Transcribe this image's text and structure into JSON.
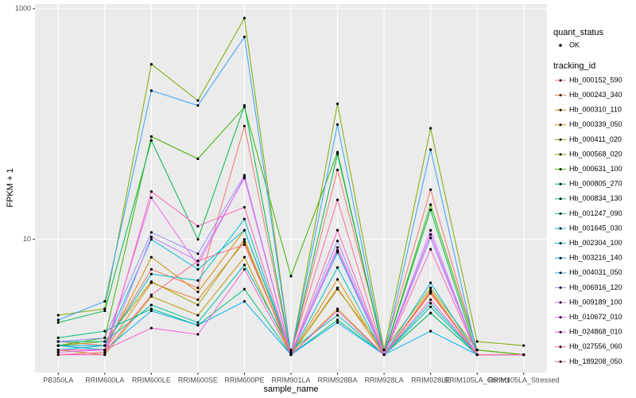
{
  "chart_data": {
    "type": "line",
    "x_label": "sample_name",
    "y_label": "FPKM + 1",
    "log_y": true,
    "grid": true,
    "ylim": [
      0.7,
      1100
    ],
    "yticks": [
      10,
      1000
    ],
    "shape_legend": {
      "title": "quant_status",
      "labels": [
        "OK"
      ]
    },
    "color_legend_title": "tracking_id",
    "categories": [
      "PB350LA",
      "RRIM600LA",
      "RRIM600LE",
      "RRIM600SE",
      "RRIM600PE",
      "RRIM901LA",
      "RRIM928BA",
      "RRIM928LA",
      "RRIM928LE",
      "RRIM105LA_Control",
      "RRIM105LA_Stressed"
    ],
    "series": [
      {
        "name": "Hb_000152_590",
        "color": "#F8766D",
        "values": [
          1.3,
          1.2,
          5.5,
          3.8,
          96,
          1,
          40,
          1.1,
          27,
          1.1,
          1
        ]
      },
      {
        "name": "Hb_000243_340",
        "color": "#EA8331",
        "values": [
          1.1,
          1.1,
          4.2,
          3.0,
          9.5,
          1,
          3.8,
          1,
          3.4,
          1,
          1
        ]
      },
      {
        "name": "Hb_000310_110",
        "color": "#D89000",
        "values": [
          1.2,
          1.1,
          7.0,
          3.5,
          12,
          1,
          4.5,
          1,
          3.6,
          1,
          1
        ]
      },
      {
        "name": "Hb_000339_050",
        "color": "#C09B00",
        "values": [
          1.1,
          1.0,
          3.2,
          2.2,
          7,
          1,
          2.5,
          1,
          2.3,
          1,
          1
        ]
      },
      {
        "name": "Hb_000411_020",
        "color": "#A3A500",
        "values": [
          1.2,
          1.3,
          4.3,
          2.7,
          10,
          1,
          3.7,
          1.1,
          3.8,
          1.1,
          1
        ]
      },
      {
        "name": "Hb_000568_020",
        "color": "#7CAE00",
        "values": [
          2.2,
          2.5,
          330,
          160,
          830,
          1,
          150,
          1.1,
          92,
          1.3,
          1.2
        ]
      },
      {
        "name": "Hb_000631_100",
        "color": "#39B600",
        "values": [
          1.2,
          1.4,
          78,
          50,
          140,
          4.8,
          57,
          1,
          20,
          1.1,
          1
        ]
      },
      {
        "name": "Hb_000805_270",
        "color": "#00BB4E",
        "values": [
          1.9,
          2.4,
          72,
          10,
          145,
          1,
          55,
          1,
          18,
          1,
          1
        ]
      },
      {
        "name": "Hb_000834_130",
        "color": "#00BF7D",
        "values": [
          1.4,
          1.6,
          2.5,
          1.8,
          3.7,
          1,
          2.0,
          1,
          2.3,
          1,
          1
        ]
      },
      {
        "name": "Hb_001247_090",
        "color": "#00C1A3",
        "values": [
          1.3,
          1.3,
          2.7,
          1.9,
          6.0,
          1.1,
          2.2,
          1,
          2.6,
          1,
          1
        ]
      },
      {
        "name": "Hb_001645_030",
        "color": "#00BFC4",
        "values": [
          1.1,
          1.2,
          5.0,
          4.4,
          15,
          1,
          5.7,
          1,
          2.8,
          1,
          1
        ]
      },
      {
        "name": "Hb_002304_100",
        "color": "#00BAE0",
        "values": [
          1.2,
          1.2,
          10,
          5.5,
          12,
          1.05,
          7.7,
          1,
          4.2,
          1,
          1
        ]
      },
      {
        "name": "Hb_003216_140",
        "color": "#00B0F6",
        "values": [
          1.2,
          1.1,
          2.4,
          1.8,
          2.9,
          1,
          1.9,
          1,
          1.6,
          1,
          1
        ]
      },
      {
        "name": "Hb_004031_050",
        "color": "#35A2FF",
        "values": [
          2.0,
          2.9,
          195,
          145,
          570,
          1,
          99,
          1,
          60,
          1,
          1
        ]
      },
      {
        "name": "Hb_006916_120",
        "color": "#9590FF",
        "values": [
          1.3,
          1.4,
          11.5,
          7.5,
          36,
          1,
          9.7,
          1,
          10.3,
          1,
          1
        ]
      },
      {
        "name": "Hb_009189_100",
        "color": "#C77CFF",
        "values": [
          1.0,
          1.0,
          10.5,
          6.5,
          34,
          1,
          8.0,
          1,
          12,
          1,
          1
        ]
      },
      {
        "name": "Hb_010672_010",
        "color": "#E76BF3",
        "values": [
          1.05,
          1.1,
          23,
          6,
          35,
          1,
          8.5,
          1,
          11,
          1,
          1
        ]
      },
      {
        "name": "Hb_024868_010",
        "color": "#FA62DB",
        "values": [
          1.1,
          1.1,
          1.7,
          1.5,
          5.5,
          1,
          2.4,
          1,
          3.0,
          1,
          1
        ]
      },
      {
        "name": "Hb_027556_060",
        "color": "#FF62BC",
        "values": [
          1.0,
          1.0,
          26,
          13,
          19,
          1,
          12,
          1,
          8.2,
          1,
          1
        ]
      },
      {
        "name": "Hb_189208_050",
        "color": "#FF6C91",
        "values": [
          1.0,
          1.05,
          3.3,
          6.5,
          9.0,
          1.05,
          22,
          1,
          3.5,
          1,
          1
        ]
      }
    ]
  }
}
